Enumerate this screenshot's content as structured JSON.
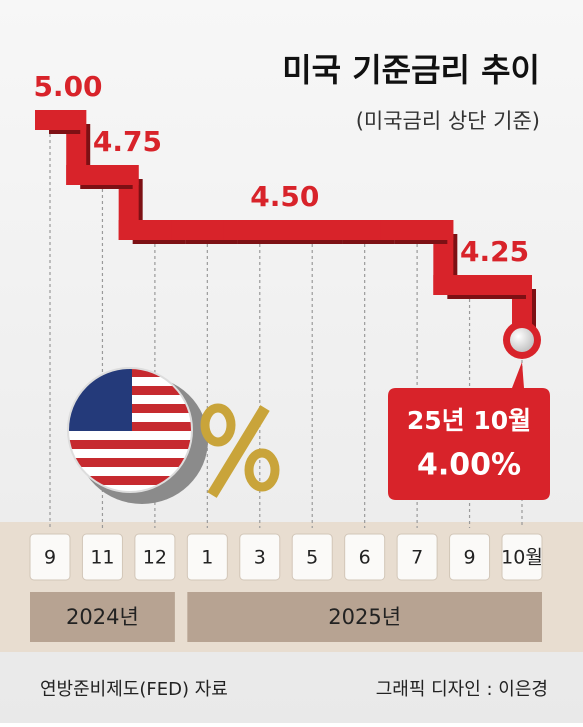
{
  "chart_data": {
    "type": "step",
    "title": "미국 기준금리 추이",
    "subtitle": "(미국금리 상단 기준)",
    "categories": [
      "9",
      "11",
      "12",
      "1",
      "3",
      "5",
      "6",
      "7",
      "9",
      "10월"
    ],
    "years": [
      "2024년",
      "2025년"
    ],
    "values": [
      5.0,
      4.75,
      4.5,
      4.5,
      4.5,
      4.5,
      4.5,
      4.5,
      4.25,
      4.0
    ],
    "value_labels": [
      "5.00",
      "4.75",
      null,
      null,
      "4.50",
      null,
      null,
      null,
      "4.25",
      "4.00%"
    ],
    "callout": "25년 10월",
    "color": "#d8232a",
    "ylim": [
      4,
      5
    ],
    "source": "연방준비제도(FED) 자료",
    "credit": "그래픽 디자인 : 이은경"
  }
}
